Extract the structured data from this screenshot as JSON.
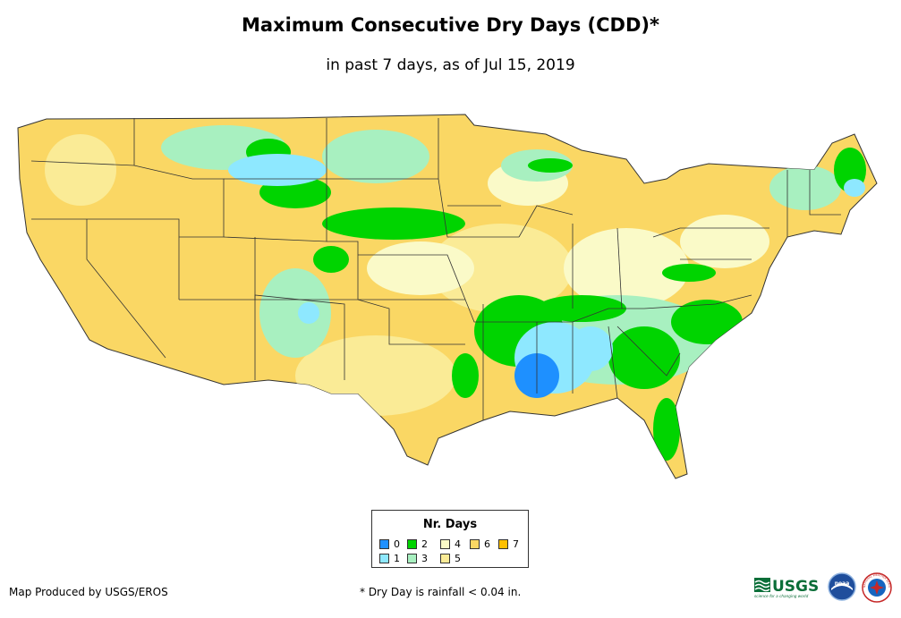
{
  "header": {
    "title": "Maximum Consecutive Dry Days (CDD)*",
    "subtitle": "in past 7 days, as of Jul 15, 2019"
  },
  "legend": {
    "title": "Nr. Days",
    "items": [
      {
        "label": "0",
        "color": "#1e90ff"
      },
      {
        "label": "1",
        "color": "#8ee8ff"
      },
      {
        "label": "2",
        "color": "#00d400"
      },
      {
        "label": "3",
        "color": "#a8f0c0"
      },
      {
        "label": "4",
        "color": "#fafac8"
      },
      {
        "label": "5",
        "color": "#faeb96"
      },
      {
        "label": "6",
        "color": "#fad764"
      },
      {
        "label": "7",
        "color": "#ffc000"
      }
    ]
  },
  "footer": {
    "credit": "Map Produced by USGS/EROS",
    "note": "* Dry Day is rainfall < 0.04 in."
  },
  "logos": {
    "usgs_text": "USGS",
    "usgs_tagline": "science for a changing world",
    "noaa_text": "noaa",
    "nws_text": "NATIONAL WEATHER SERVICE"
  },
  "map": {
    "subject": "Contiguous United States",
    "states_colors": {
      "base_dry": "#fad764",
      "moderate": "#faeb96",
      "light": "#fafac8",
      "wet_green": "#00d400",
      "mint": "#a8f0c0",
      "cyan": "#8ee8ff",
      "blue": "#1e90ff",
      "border": "#333333"
    }
  }
}
